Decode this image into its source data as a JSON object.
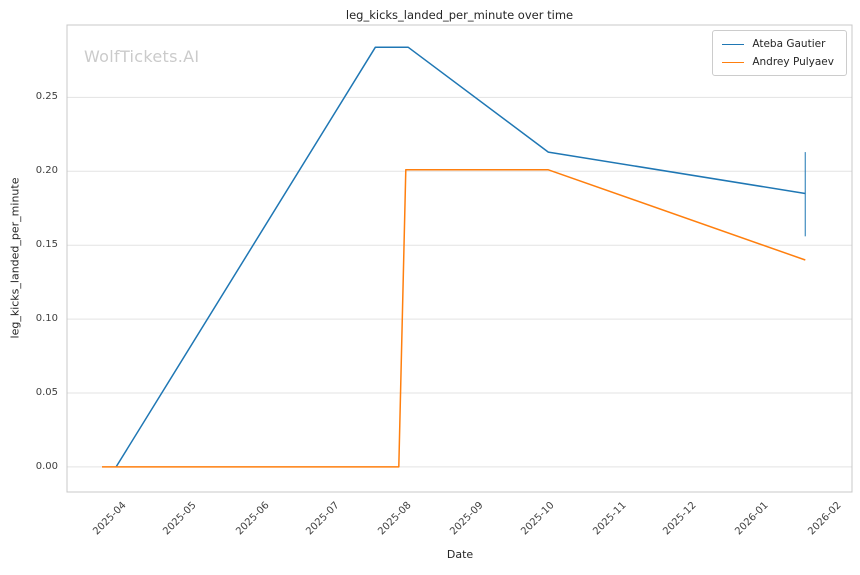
{
  "chart_data": {
    "type": "line",
    "title": "leg_kicks_landed_per_minute over time",
    "xlabel": "Date",
    "ylabel": "leg_kicks_landed_per_minute",
    "watermark": "WolfTickets.AI",
    "grid": true,
    "legend_position": "upper right",
    "xlim": [
      "2025-03-09",
      "2026-02-08"
    ],
    "ylim": [
      -0.017,
      0.299
    ],
    "x_ticks": [
      "2025-04",
      "2025-05",
      "2025-06",
      "2025-07",
      "2025-08",
      "2025-09",
      "2025-10",
      "2025-11",
      "2025-12",
      "2026-01",
      "2026-02"
    ],
    "y_ticks": [
      "0.00",
      "0.05",
      "0.10",
      "0.15",
      "0.20",
      "0.25"
    ],
    "series": [
      {
        "name": "Ateba Gautier",
        "color": "#1f77b4",
        "points": [
          {
            "date": "2025-03-30",
            "value": 0.0
          },
          {
            "date": "2025-07-19",
            "value": 0.284
          },
          {
            "date": "2025-08-02",
            "value": 0.284
          },
          {
            "date": "2025-10-01",
            "value": 0.213
          },
          {
            "date": "2026-01-19",
            "value": 0.185
          }
        ],
        "error_bar": {
          "date": "2026-01-19",
          "low": 0.156,
          "high": 0.213
        }
      },
      {
        "name": "Andrey Pulyaev",
        "color": "#ff7f0e",
        "points": [
          {
            "date": "2025-03-24",
            "value": 0.0
          },
          {
            "date": "2025-07-29",
            "value": 0.0
          },
          {
            "date": "2025-08-01",
            "value": 0.201
          },
          {
            "date": "2025-10-01",
            "value": 0.201
          },
          {
            "date": "2026-01-19",
            "value": 0.14
          }
        ]
      }
    ],
    "colors": {
      "grid": "#e3e3e3",
      "spine": "#c8c8c8",
      "text": "#262626",
      "tick_text": "#404040",
      "watermark": "#cbcbcb",
      "background": "#ffffff"
    }
  }
}
